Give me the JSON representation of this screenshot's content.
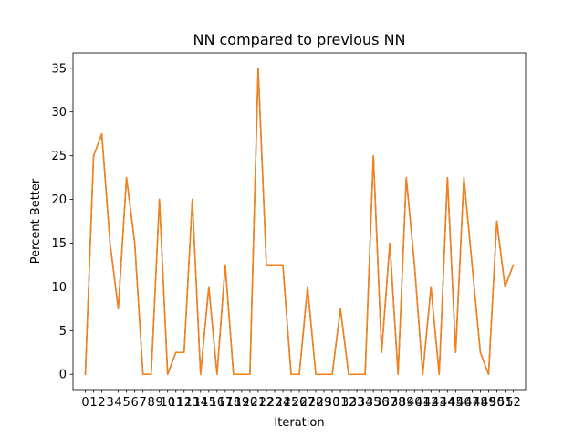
{
  "chart_data": {
    "type": "line",
    "title": "NN compared to previous NN",
    "xlabel": "Iteration",
    "ylabel": "Percent Better",
    "x": [
      0,
      1,
      2,
      3,
      4,
      5,
      6,
      7,
      8,
      9,
      10,
      11,
      12,
      13,
      14,
      15,
      16,
      17,
      18,
      19,
      20,
      21,
      22,
      23,
      24,
      25,
      26,
      27,
      28,
      29,
      30,
      31,
      32,
      33,
      34,
      35,
      36,
      37,
      38,
      39,
      40,
      41,
      42,
      43,
      44,
      45,
      46,
      47,
      48,
      49,
      50,
      51,
      52
    ],
    "x_tick_labels": [
      "0",
      "1",
      "2",
      "3",
      "4",
      "5",
      "6",
      "7",
      "8",
      "9",
      "10",
      "11",
      "12",
      "13",
      "14",
      "15",
      "16",
      "17",
      "18",
      "19",
      "20",
      "21",
      "22",
      "23",
      "24",
      "25",
      "26",
      "27",
      "28",
      "29",
      "30",
      "31",
      "32",
      "33",
      "34",
      "35",
      "36",
      "37",
      "38",
      "39",
      "40",
      "41",
      "42",
      "43",
      "44",
      "45",
      "46",
      "47",
      "48",
      "49",
      "50",
      "51",
      "52"
    ],
    "y_ticks": [
      0,
      5,
      10,
      15,
      20,
      25,
      30,
      35
    ],
    "xlim": [
      -1.5,
      53.5
    ],
    "ylim": [
      -1.75,
      36.75
    ],
    "grid": false,
    "series": [
      {
        "color": "#1f77b4",
        "values": [
          0,
          25,
          27.5,
          15,
          7.5,
          22.5,
          15,
          0,
          0,
          20,
          0,
          2.5,
          2.5,
          20,
          0,
          10,
          0,
          12.5,
          0,
          0,
          0,
          35,
          12.5,
          12.5,
          12.5,
          0,
          0,
          10,
          0,
          0,
          0,
          7.5,
          0,
          0,
          0,
          25,
          2.5,
          15,
          0,
          22.5,
          12.5,
          0,
          10,
          0,
          22.5,
          2.5,
          22.5,
          12.5,
          2.5,
          0,
          17.5,
          10,
          12.5
        ]
      },
      {
        "color": "#ff7f0e",
        "values": [
          0,
          25,
          27.5,
          15,
          7.5,
          22.5,
          15,
          0,
          0,
          20,
          0,
          2.5,
          2.5,
          20,
          0,
          10,
          0,
          12.5,
          0,
          0,
          0,
          35,
          12.5,
          12.5,
          12.5,
          0,
          0,
          10,
          0,
          0,
          0,
          7.5,
          0,
          0,
          0,
          25,
          2.5,
          15,
          0,
          22.5,
          12.5,
          0,
          10,
          0,
          22.5,
          2.5,
          22.5,
          12.5,
          2.5,
          0,
          17.5,
          10,
          12.5
        ]
      }
    ]
  }
}
